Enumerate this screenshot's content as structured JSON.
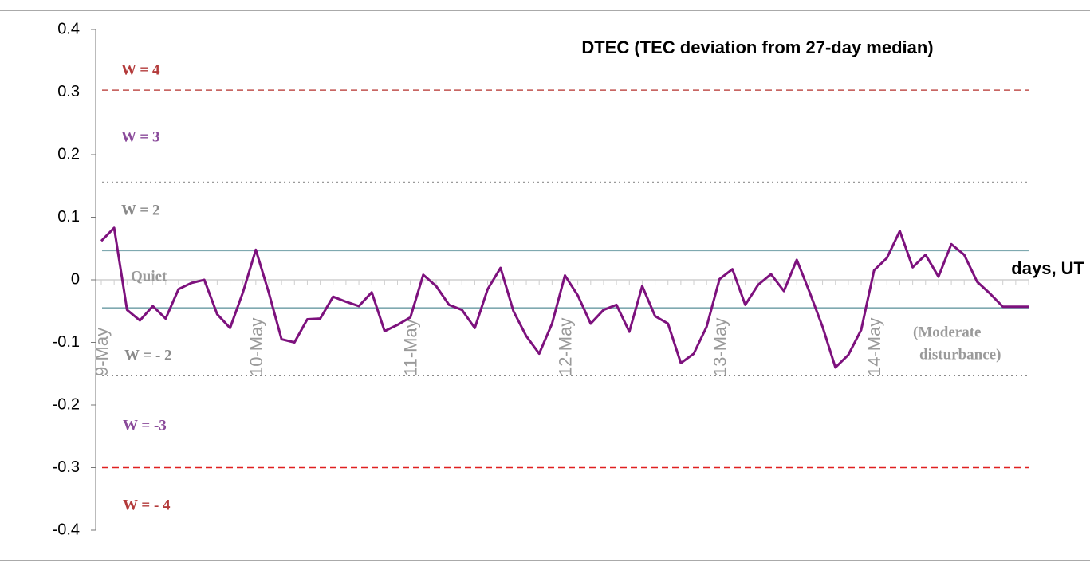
{
  "chart_data": {
    "type": "line",
    "title": "DTEC (TEC deviation from 27-day median)",
    "x_label": "days, UT",
    "categories": [
      "9-May",
      null,
      null,
      null,
      null,
      null,
      null,
      null,
      null,
      null,
      null,
      null,
      "10-May",
      null,
      null,
      null,
      null,
      null,
      null,
      null,
      null,
      null,
      null,
      null,
      "11-May",
      null,
      null,
      null,
      null,
      null,
      null,
      null,
      null,
      null,
      null,
      null,
      "12-May",
      null,
      null,
      null,
      null,
      null,
      null,
      null,
      null,
      null,
      null,
      null,
      "13-May",
      null,
      null,
      null,
      null,
      null,
      null,
      null,
      null,
      null,
      null,
      null,
      "14-May",
      null,
      null,
      null,
      null,
      null,
      null,
      null,
      null,
      null,
      null,
      null,
      null
    ],
    "series": [
      {
        "color": "#7d117d",
        "values": [
          0.062,
          0.083,
          -0.048,
          -0.065,
          -0.042,
          -0.062,
          -0.015,
          -0.005,
          0.0,
          -0.055,
          -0.077,
          -0.02,
          0.048,
          -0.02,
          -0.095,
          -0.1,
          -0.063,
          -0.062,
          -0.027,
          -0.035,
          -0.042,
          -0.02,
          -0.082,
          -0.072,
          -0.06,
          0.008,
          -0.01,
          -0.04,
          -0.048,
          -0.077,
          -0.015,
          0.019,
          -0.05,
          -0.09,
          -0.118,
          -0.07,
          0.007,
          -0.025,
          -0.07,
          -0.048,
          -0.04,
          -0.083,
          -0.01,
          -0.058,
          -0.07,
          -0.133,
          -0.118,
          -0.075,
          0.001,
          0.017,
          -0.04,
          -0.008,
          0.009,
          -0.018,
          0.032,
          -0.02,
          -0.075,
          -0.14,
          -0.12,
          -0.08,
          0.015,
          0.035,
          0.078,
          0.02,
          0.04,
          0.005,
          0.057,
          0.04,
          -0.003,
          -0.022,
          -0.043,
          -0.043,
          -0.043
        ]
      }
    ],
    "ylim": [
      -0.4,
      0.4
    ],
    "yticks": [
      -0.4,
      -0.3,
      -0.2,
      -0.1,
      0,
      0.1,
      0.2,
      0.3,
      0.4
    ],
    "reference_lines": [
      {
        "value": 0.303,
        "style": "dashed",
        "color": "#c0504d"
      },
      {
        "value": 0.156,
        "style": "dotted",
        "color": "#9a9a9a"
      },
      {
        "value": 0.047,
        "style": "solid",
        "color": "#7fa9b0"
      },
      {
        "value": -0.045,
        "style": "solid",
        "color": "#7fa9b0"
      },
      {
        "value": -0.153,
        "style": "dotted",
        "color": "#7a7a7a"
      },
      {
        "value": -0.3,
        "style": "dashed",
        "color": "#e02020"
      }
    ],
    "annotations": [
      {
        "text": "W = 4",
        "color": "#b33a3a"
      },
      {
        "text": "W = 3",
        "color": "#8a4a9a"
      },
      {
        "text": "W = 2",
        "color": "#8a8a8a"
      },
      {
        "text": "Quiet",
        "color": "#9a9a9a"
      },
      {
        "text": "W = - 2",
        "color": "#8a8a8a"
      },
      {
        "text": "W = -3",
        "color": "#8a4a9a"
      },
      {
        "text": "W = - 4",
        "color": "#b33a3a"
      },
      {
        "text": "(Moderate",
        "color": "#9a9a9a"
      },
      {
        "text": "disturbance)",
        "color": "#9a9a9a"
      }
    ]
  }
}
